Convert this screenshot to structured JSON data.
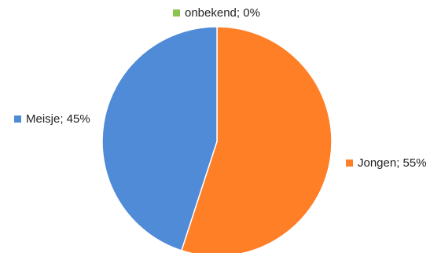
{
  "chart_data": {
    "type": "pie",
    "title": "",
    "slices": [
      {
        "label": "Jongen",
        "value": 55,
        "color": "#ff7f27",
        "label_text": "Jongen; 55%"
      },
      {
        "label": "Meisje",
        "value": 45,
        "color": "#4f8bd6",
        "label_text": "Meisje; 45%"
      },
      {
        "label": "onbekend",
        "value": 0,
        "color": "#8dc44f",
        "label_text": "onbekend; 0%"
      }
    ],
    "legend": "none",
    "data_labels": "category; percentage"
  }
}
